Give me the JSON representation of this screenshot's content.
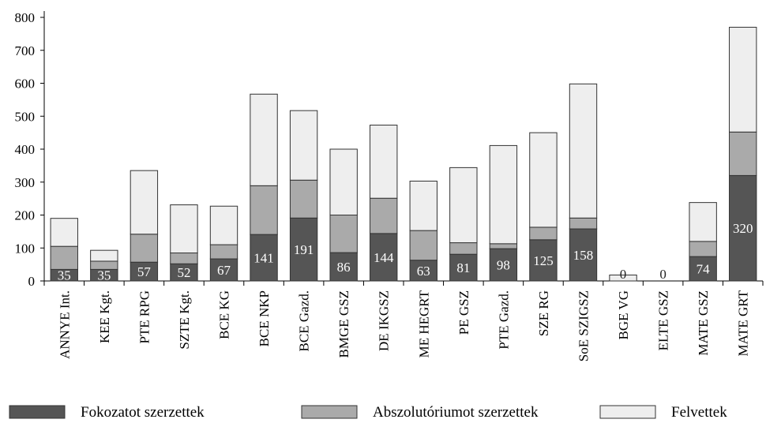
{
  "chart_data": {
    "type": "bar",
    "stacked": true,
    "title": "",
    "xlabel": "",
    "ylabel": "",
    "ylim": [
      0,
      800
    ],
    "yticks": [
      0,
      100,
      200,
      300,
      400,
      500,
      600,
      700,
      800
    ],
    "grid": false,
    "legend_position": "bottom",
    "categories": [
      "ANNYE Int.",
      "KEE Kgt.",
      "PTE RPG",
      "SZTE Kgt.",
      "BCE KG",
      "BCE NKP",
      "BCE Gazd.",
      "BMGE GSZ",
      "DE IKGSZ",
      "ME HEGRT",
      "PE GSZ",
      "PTE Gazd.",
      "SZE RG",
      "SoE SZIGSZ",
      "BGE VG",
      "ELTE GSZ",
      "MATE GSZ",
      "MATE GRT"
    ],
    "series": [
      {
        "name": "Fokozatot szerzettek",
        "color": "#555555",
        "values": [
          35,
          35,
          57,
          52,
          67,
          141,
          191,
          86,
          144,
          63,
          81,
          98,
          125,
          158,
          0,
          0,
          74,
          320
        ]
      },
      {
        "name": "Abszolutóriumot szerzettek",
        "color": "#aaaaaa",
        "values": [
          70,
          25,
          85,
          33,
          43,
          148,
          115,
          114,
          107,
          90,
          35,
          15,
          38,
          33,
          0,
          0,
          46,
          132
        ]
      },
      {
        "name": "Felvettek",
        "color": "#eeeeee",
        "values": [
          85,
          33,
          193,
          146,
          117,
          278,
          211,
          200,
          222,
          150,
          228,
          298,
          287,
          407,
          18,
          0,
          118,
          318
        ]
      }
    ],
    "data_labels": [
      "35",
      "35",
      "57",
      "52",
      "67",
      "141",
      "191",
      "86",
      "144",
      "63",
      "81",
      "98",
      "125",
      "158",
      "0",
      "0",
      "74",
      "320"
    ]
  }
}
